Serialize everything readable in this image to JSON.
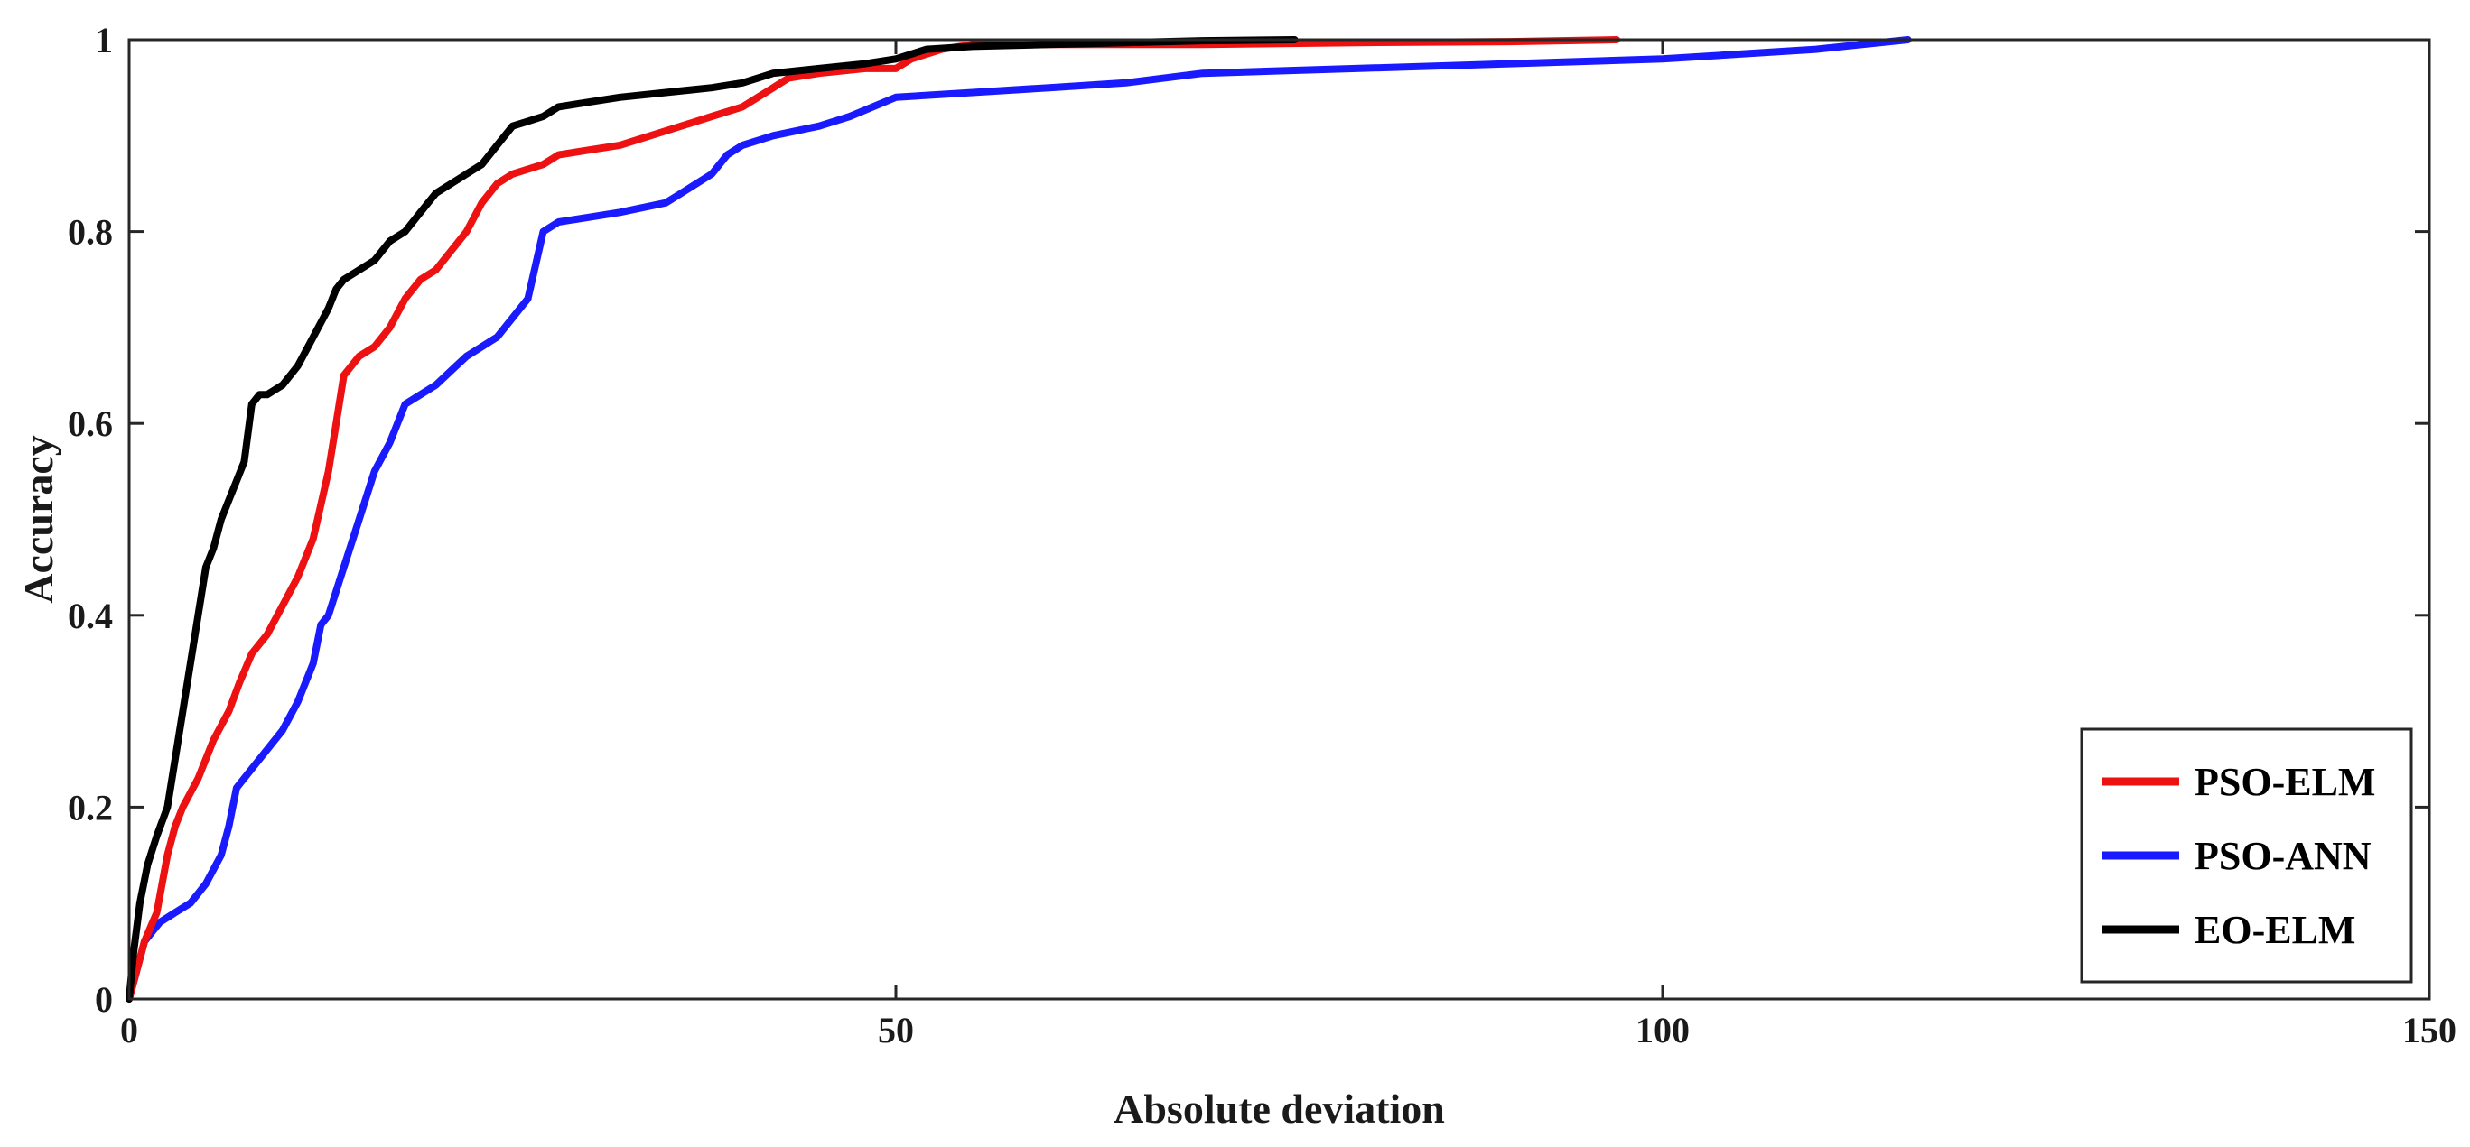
{
  "chart_data": {
    "type": "line",
    "xlabel": "Absolute deviation",
    "ylabel": "Accuracy",
    "xlim": [
      0,
      150
    ],
    "ylim": [
      0,
      1
    ],
    "xticks": [
      0,
      50,
      100,
      150
    ],
    "yticks": [
      0,
      0.2,
      0.4,
      0.6,
      0.8,
      1
    ],
    "xtick_labels": [
      "0",
      "50",
      "100",
      "150"
    ],
    "ytick_labels": [
      "0",
      "0.2",
      "0.4",
      "0.6",
      "0.8",
      "1"
    ],
    "grid": false,
    "legend_position": "bottom-right",
    "series": [
      {
        "name": "PSO-ELM",
        "color": "#ee1111",
        "x": [
          0,
          0.5,
          1,
          1.8,
          2.5,
          3,
          3.5,
          4.5,
          5.5,
          6.5,
          7.2,
          8,
          9,
          10,
          11,
          12,
          13,
          13.5,
          14,
          15,
          16,
          17,
          18,
          19,
          20,
          21,
          22,
          23,
          24,
          25,
          27,
          28,
          30,
          32,
          34,
          36,
          38,
          40,
          42,
          43,
          45,
          48,
          50,
          51,
          53,
          55,
          60,
          70,
          80,
          90,
          97
        ],
        "y": [
          0,
          0.03,
          0.06,
          0.09,
          0.15,
          0.18,
          0.2,
          0.23,
          0.27,
          0.3,
          0.33,
          0.36,
          0.38,
          0.41,
          0.44,
          0.48,
          0.55,
          0.6,
          0.65,
          0.67,
          0.68,
          0.7,
          0.73,
          0.75,
          0.76,
          0.78,
          0.8,
          0.83,
          0.85,
          0.86,
          0.87,
          0.88,
          0.885,
          0.89,
          0.9,
          0.91,
          0.92,
          0.93,
          0.95,
          0.96,
          0.965,
          0.97,
          0.97,
          0.98,
          0.99,
          0.995,
          0.995,
          0.995,
          0.997,
          0.998,
          1.0
        ]
      },
      {
        "name": "PSO-ANN",
        "color": "#1a1aff",
        "x": [
          0,
          0.5,
          1,
          2,
          3,
          4,
          5,
          6,
          6.5,
          7,
          8,
          9,
          10,
          11,
          12,
          12.5,
          13,
          14,
          15,
          16,
          17,
          18,
          19,
          20,
          21,
          22,
          23,
          24,
          25,
          26,
          27,
          28,
          30,
          32,
          35,
          36,
          38,
          39,
          40,
          42,
          45,
          47,
          50,
          55,
          60,
          65,
          70,
          80,
          90,
          100,
          110,
          116
        ],
        "y": [
          0,
          0.03,
          0.06,
          0.08,
          0.09,
          0.1,
          0.12,
          0.15,
          0.18,
          0.22,
          0.24,
          0.26,
          0.28,
          0.31,
          0.35,
          0.39,
          0.4,
          0.45,
          0.5,
          0.55,
          0.58,
          0.62,
          0.63,
          0.64,
          0.655,
          0.67,
          0.68,
          0.69,
          0.71,
          0.73,
          0.8,
          0.81,
          0.815,
          0.82,
          0.83,
          0.84,
          0.86,
          0.88,
          0.89,
          0.9,
          0.91,
          0.92,
          0.94,
          0.945,
          0.95,
          0.955,
          0.965,
          0.97,
          0.975,
          0.98,
          0.99,
          1.0
        ]
      },
      {
        "name": "EO-ELM",
        "color": "#000000",
        "x": [
          0,
          0.3,
          0.7,
          1.2,
          1.8,
          2.5,
          3,
          3.5,
          4,
          4.5,
          5,
          5.5,
          6,
          6.5,
          7,
          7.5,
          8,
          8.5,
          9,
          10,
          11,
          12,
          13,
          13.5,
          14,
          15,
          16,
          17,
          18,
          19,
          20,
          21,
          22,
          23,
          24,
          25,
          26,
          27,
          28,
          30,
          32,
          35,
          38,
          40,
          42,
          45,
          48,
          50,
          51,
          52,
          55,
          60,
          65,
          70,
          76
        ],
        "y": [
          0,
          0.05,
          0.1,
          0.14,
          0.17,
          0.2,
          0.25,
          0.3,
          0.35,
          0.4,
          0.45,
          0.47,
          0.5,
          0.52,
          0.54,
          0.56,
          0.62,
          0.63,
          0.63,
          0.64,
          0.66,
          0.69,
          0.72,
          0.74,
          0.75,
          0.76,
          0.77,
          0.79,
          0.8,
          0.82,
          0.84,
          0.85,
          0.86,
          0.87,
          0.89,
          0.91,
          0.915,
          0.92,
          0.93,
          0.935,
          0.94,
          0.945,
          0.95,
          0.955,
          0.965,
          0.97,
          0.975,
          0.98,
          0.985,
          0.99,
          0.993,
          0.995,
          0.997,
          0.999,
          1.0
        ]
      }
    ]
  }
}
